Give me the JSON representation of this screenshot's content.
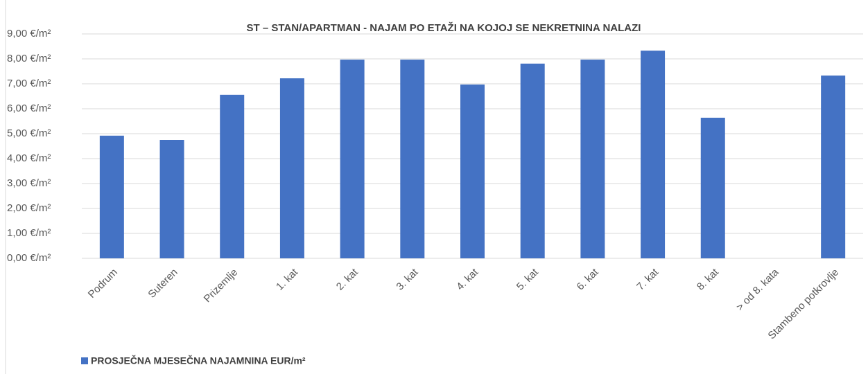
{
  "chart_data": {
    "type": "bar",
    "title": "ST – STAN/APARTMAN - NAJAM PO ETAŽI NA KOJOJ SE NEKRETNINA NALAZI",
    "categories": [
      "Podrum",
      "Suteren",
      "Prizemlje",
      "1. kat",
      "2. kat",
      "3. kat",
      "4. kat",
      "5. kat",
      "6. kat",
      "7. kat",
      "8. kat",
      "> od 8. kata",
      "Stambeno potkrovlje"
    ],
    "series": [
      {
        "name": "PROSJEČNA MJESEČNA NAJAMNINA EUR/m²",
        "color": "#4472c4",
        "values": [
          4.92,
          4.75,
          6.56,
          7.22,
          7.97,
          7.97,
          6.97,
          7.81,
          7.97,
          8.33,
          5.64,
          null,
          7.33
        ]
      }
    ],
    "ylim": [
      0,
      9
    ],
    "yticks": [
      {
        "value": 0,
        "label": "0,00 €/m²"
      },
      {
        "value": 1,
        "label": "1,00 €/m²"
      },
      {
        "value": 2,
        "label": "2,00 €/m²"
      },
      {
        "value": 3,
        "label": "3,00 €/m²"
      },
      {
        "value": 4,
        "label": "4,00 €/m²"
      },
      {
        "value": 5,
        "label": "5,00 €/m²"
      },
      {
        "value": 6,
        "label": "6,00 €/m²"
      },
      {
        "value": 7,
        "label": "7,00 €/m²"
      },
      {
        "value": 8,
        "label": "8,00 €/m²"
      },
      {
        "value": 9,
        "label": "9,00 €/m²"
      }
    ],
    "grid": true,
    "legend": "bottom-left"
  }
}
